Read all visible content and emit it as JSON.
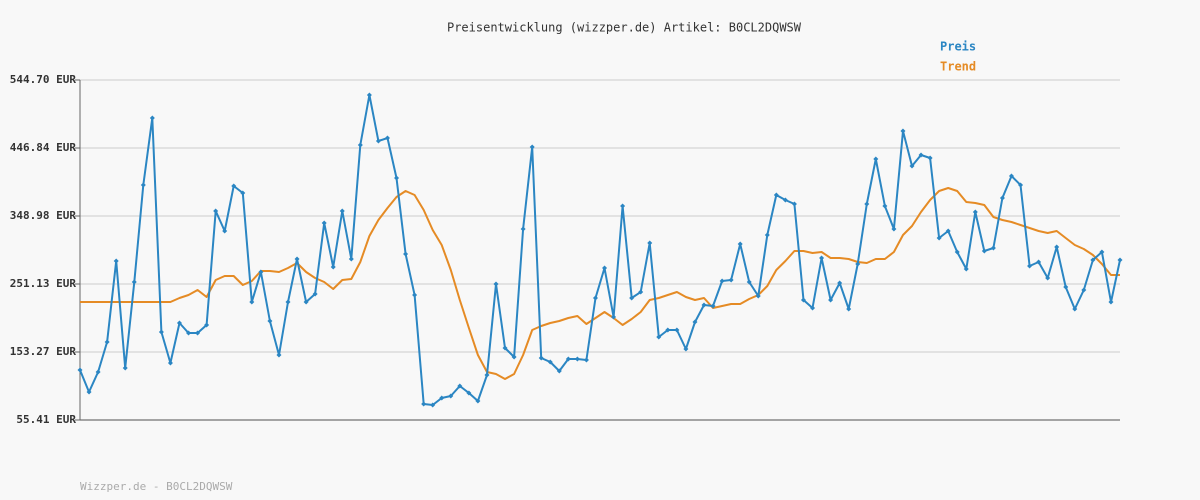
{
  "chart_data": {
    "type": "line",
    "title": "Preisentwicklung (wizzper.de) Artikel: B0CL2DQWSW",
    "footer": "Wizzper.de - B0CL2DQWSW",
    "ylim": [
      55.41,
      544.7
    ],
    "yticks": [
      {
        "value": 55.41,
        "label": "55.41 EUR"
      },
      {
        "value": 153.27,
        "label": "153.27 EUR"
      },
      {
        "value": 251.13,
        "label": "251.13 EUR"
      },
      {
        "value": 348.98,
        "label": "348.98 EUR"
      },
      {
        "value": 446.84,
        "label": "446.84 EUR"
      },
      {
        "value": 544.7,
        "label": "544.70 EUR"
      }
    ],
    "grid": true,
    "legend": "top-right",
    "series": [
      {
        "name": "Preis",
        "color": "#2b86c3",
        "markers": true,
        "values": [
          127.4,
          95.7,
          124.5,
          167.6,
          284.2,
          130.2,
          254.0,
          393.6,
          490.0,
          182.0,
          137.4,
          195.0,
          180.6,
          180.6,
          192.1,
          356.2,
          327.4,
          392.1,
          382.1,
          225.2,
          268.4,
          197.9,
          149.0,
          225.2,
          287.1,
          225.2,
          236.7,
          338.9,
          275.6,
          356.2,
          287.1,
          451.1,
          523.1,
          456.9,
          461.2,
          403.6,
          294.3,
          235.3,
          78.4,
          77.0,
          87.1,
          90.0,
          104.3,
          94.3,
          82.7,
          120.2,
          251.1,
          159.0,
          146.1,
          330.3,
          448.3,
          144.6,
          138.9,
          125.9,
          143.2,
          143.2,
          141.7,
          231.0,
          274.1,
          203.6,
          363.3,
          231.0,
          239.6,
          310.1,
          174.8,
          184.9,
          184.9,
          157.6,
          196.4,
          220.9,
          219.4,
          255.4,
          256.9,
          308.7,
          254.0,
          233.8,
          321.6,
          379.2,
          372.0,
          366.2,
          228.1,
          216.6,
          288.5,
          228.1,
          252.5,
          215.1,
          279.9,
          366.2,
          431.0,
          363.3,
          330.3,
          471.3,
          420.9,
          436.8,
          432.4,
          317.3,
          327.4,
          297.2,
          272.7,
          354.7,
          298.6,
          302.9,
          374.9,
          406.5,
          393.6,
          277.0,
          282.8,
          259.7,
          304.4,
          246.8,
          215.1,
          242.5,
          285.6,
          297.2,
          225.2,
          285.6
        ]
      },
      {
        "name": "Trend",
        "color": "#e58b25",
        "markers": false,
        "values": [
          225.2,
          225.2,
          225.2,
          225.2,
          225.2,
          225.2,
          225.2,
          225.2,
          225.2,
          225.2,
          225.2,
          231.0,
          235.3,
          242.5,
          232.4,
          256.9,
          262.6,
          262.6,
          249.7,
          255.4,
          269.8,
          269.8,
          268.4,
          274.1,
          281.3,
          268.4,
          259.7,
          254.0,
          243.9,
          256.9,
          258.3,
          282.8,
          320.2,
          343.2,
          360.5,
          376.3,
          384.9,
          379.2,
          357.6,
          328.8,
          307.2,
          271.3,
          228.1,
          187.8,
          149.0,
          124.5,
          121.6,
          114.4,
          121.6,
          149.0,
          184.9,
          190.7,
          195.0,
          197.9,
          202.2,
          205.1,
          193.6,
          202.2,
          210.8,
          202.2,
          192.1,
          200.7,
          210.8,
          228.1,
          231.0,
          235.3,
          239.6,
          232.4,
          228.1,
          231.0,
          216.6,
          219.4,
          222.3,
          222.3,
          229.5,
          235.3,
          248.2,
          271.3,
          284.2,
          298.6,
          298.6,
          295.7,
          297.2,
          288.5,
          288.5,
          287.1,
          282.8,
          281.3,
          287.1,
          287.1,
          297.2,
          321.6,
          334.6,
          354.7,
          372.0,
          384.9,
          389.3,
          384.9,
          369.1,
          367.7,
          364.8,
          347.5,
          343.2,
          340.3,
          336.0,
          331.7,
          327.4,
          324.5,
          327.4,
          317.3,
          307.2,
          301.5,
          292.9,
          279.9,
          264.1,
          264.1
        ]
      }
    ]
  }
}
